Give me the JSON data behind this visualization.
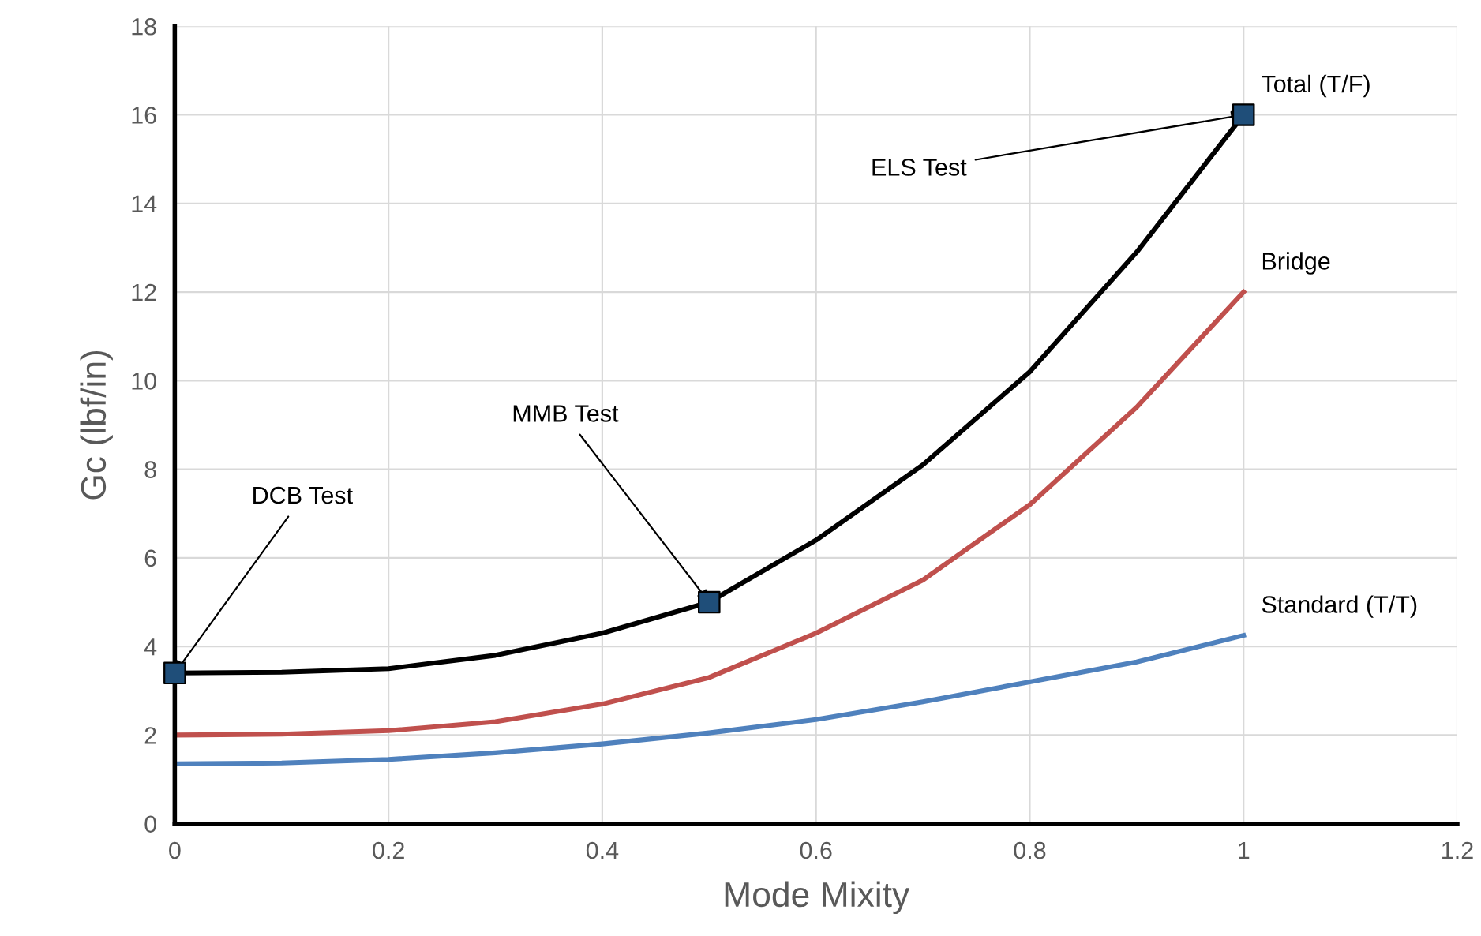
{
  "chart_data": {
    "type": "line",
    "xlabel": "Mode Mixity",
    "ylabel": "Gc (lbf/in)",
    "xlim": [
      0,
      1.2
    ],
    "ylim": [
      0,
      18
    ],
    "xticks": [
      0,
      0.2,
      0.4,
      0.6,
      0.8,
      1,
      1.2
    ],
    "yticks": [
      0,
      2,
      4,
      6,
      8,
      10,
      12,
      14,
      16,
      18
    ],
    "grid": true,
    "legend": false,
    "series": [
      {
        "name": "Total (T/F)",
        "color": "#000000",
        "x": [
          0,
          0.1,
          0.2,
          0.3,
          0.4,
          0.5,
          0.6,
          0.7,
          0.8,
          0.9,
          1
        ],
        "values": [
          3.4,
          3.42,
          3.5,
          3.8,
          4.3,
          5.0,
          6.4,
          8.1,
          10.2,
          12.9,
          16
        ]
      },
      {
        "name": "Bridge",
        "color": "#c0504d",
        "x": [
          0,
          0.1,
          0.2,
          0.3,
          0.4,
          0.5,
          0.6,
          0.7,
          0.8,
          0.9,
          1
        ],
        "values": [
          2.0,
          2.02,
          2.1,
          2.3,
          2.7,
          3.3,
          4.3,
          5.5,
          7.2,
          9.4,
          12
        ]
      },
      {
        "name": "Standard (T/T)",
        "color": "#4f81bd",
        "x": [
          0,
          0.1,
          0.2,
          0.3,
          0.4,
          0.5,
          0.6,
          0.7,
          0.8,
          0.9,
          1
        ],
        "values": [
          1.35,
          1.37,
          1.45,
          1.6,
          1.8,
          2.05,
          2.35,
          2.75,
          3.2,
          3.65,
          4.25
        ]
      },
      {
        "type": "scatter",
        "marker": "square",
        "color": "#1f4e79",
        "x": [
          0,
          0.5,
          1
        ],
        "values": [
          3.4,
          5.0,
          16
        ]
      }
    ],
    "annotations": [
      {
        "text": "DCB Test",
        "x": 0,
        "y": 3.4
      },
      {
        "text": "MMB Test",
        "x": 0.5,
        "y": 5.0
      },
      {
        "text": "ELS Test",
        "x": 1,
        "y": 16
      }
    ]
  }
}
